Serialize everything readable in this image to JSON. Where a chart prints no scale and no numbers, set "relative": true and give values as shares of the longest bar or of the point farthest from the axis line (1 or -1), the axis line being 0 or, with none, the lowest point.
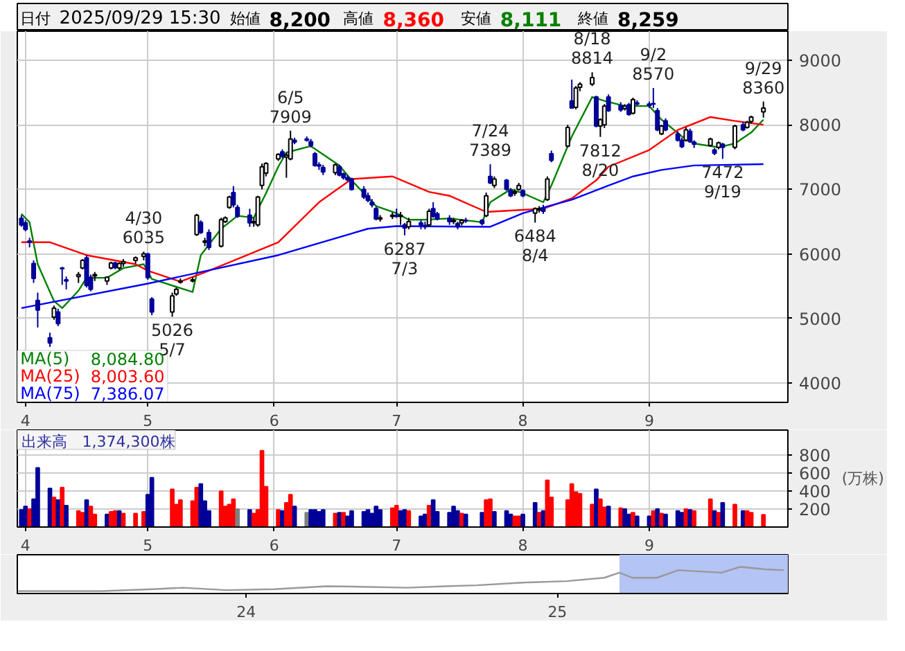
{
  "chart_data": [
    {
      "type": "candlestick",
      "annotations": [
        "日付 2025/09/29 15:30",
        "始値 8,200",
        "高値 8,360",
        "安値 8,111",
        "終値 8,259",
        {
          "text": "4/30\n6035",
          "x": "2025-04-30",
          "y": 6035
        },
        {
          "text": "5026\n5/7",
          "x": "2025-05-07",
          "y": 5026
        },
        {
          "text": "6/5\n7909",
          "x": "2025-06-05",
          "y": 7909
        },
        {
          "text": "6287\n7/3",
          "x": "2025-07-03",
          "y": 6287
        },
        {
          "text": "7/24\n7389",
          "x": "2025-07-24",
          "y": 7389
        },
        {
          "text": "6484\n8/4",
          "x": "2025-08-04",
          "y": 6484
        },
        {
          "text": "8/18\n8814",
          "x": "2025-08-18",
          "y": 8814
        },
        {
          "text": "7812\n8/20",
          "x": "2025-08-20",
          "y": 7812
        },
        {
          "text": "9/2\n8570",
          "x": "2025-09-02",
          "y": 8570
        },
        {
          "text": "7472\n9/19",
          "x": "2025-09-19",
          "y": 7472
        },
        {
          "text": "9/29\n8360",
          "x": "2025-09-29",
          "y": 8360
        }
      ],
      "x": [
        "2025-03-31",
        "2025-04-01",
        "2025-04-02",
        "2025-04-03",
        "2025-04-04",
        "2025-04-07",
        "2025-04-08",
        "2025-04-09",
        "2025-04-10",
        "2025-04-11",
        "2025-04-14",
        "2025-04-15",
        "2025-04-16",
        "2025-04-17",
        "2025-04-18",
        "2025-04-21",
        "2025-04-22",
        "2025-04-23",
        "2025-04-24",
        "2025-04-25",
        "2025-04-28",
        "2025-04-30",
        "2025-05-01",
        "2025-05-02",
        "2025-05-07",
        "2025-05-08",
        "2025-05-09",
        "2025-05-12",
        "2025-05-13",
        "2025-05-14",
        "2025-05-15",
        "2025-05-16",
        "2025-05-19",
        "2025-05-20",
        "2025-05-21",
        "2025-05-22",
        "2025-05-23",
        "2025-05-26",
        "2025-05-27",
        "2025-05-28",
        "2025-05-29",
        "2025-05-30",
        "2025-06-02",
        "2025-06-03",
        "2025-06-04",
        "2025-06-05",
        "2025-06-06",
        "2025-06-09",
        "2025-06-10",
        "2025-06-11",
        "2025-06-12",
        "2025-06-13",
        "2025-06-16",
        "2025-06-17",
        "2025-06-18",
        "2025-06-19",
        "2025-06-20",
        "2025-06-23",
        "2025-06-24",
        "2025-06-25",
        "2025-06-26",
        "2025-06-27",
        "2025-06-30",
        "2025-07-01",
        "2025-07-02",
        "2025-07-03",
        "2025-07-04",
        "2025-07-07",
        "2025-07-08",
        "2025-07-09",
        "2025-07-10",
        "2025-07-11",
        "2025-07-14",
        "2025-07-15",
        "2025-07-16",
        "2025-07-17",
        "2025-07-18",
        "2025-07-22",
        "2025-07-23",
        "2025-07-24",
        "2025-07-25",
        "2025-07-28",
        "2025-07-29",
        "2025-07-30",
        "2025-07-31",
        "2025-08-01",
        "2025-08-04",
        "2025-08-05",
        "2025-08-06",
        "2025-08-07",
        "2025-08-08",
        "2025-08-12",
        "2025-08-13",
        "2025-08-14",
        "2025-08-15",
        "2025-08-18",
        "2025-08-19",
        "2025-08-20",
        "2025-08-21",
        "2025-08-22",
        "2025-08-25",
        "2025-08-26",
        "2025-08-27",
        "2025-08-28",
        "2025-08-29",
        "2025-09-01",
        "2025-09-02",
        "2025-09-03",
        "2025-09-04",
        "2025-09-05",
        "2025-09-08",
        "2025-09-09",
        "2025-09-10",
        "2025-09-11",
        "2025-09-12",
        "2025-09-16",
        "2025-09-17",
        "2025-09-18",
        "2025-09-19",
        "2025-09-22",
        "2025-09-24",
        "2025-09-25",
        "2025-09-26",
        "2025-09-29"
      ],
      "ohlc": [
        [
          6550,
          6600,
          6420,
          6450
        ],
        [
          6480,
          6520,
          6350,
          6380
        ],
        [
          6200,
          6250,
          6100,
          6180
        ],
        [
          5850,
          5900,
          5550,
          5620
        ],
        [
          5280,
          5400,
          4860,
          5130
        ],
        [
          4700,
          4780,
          4560,
          4620
        ],
        [
          5020,
          5200,
          4980,
          5160
        ],
        [
          5100,
          5150,
          4880,
          4920
        ],
        [
          5780,
          5800,
          5520,
          5770
        ],
        [
          5600,
          5650,
          5450,
          5580
        ],
        [
          5650,
          5720,
          5550,
          5680
        ],
        [
          5780,
          5920,
          5760,
          5900
        ],
        [
          5940,
          5980,
          5480,
          5510
        ],
        [
          5640,
          5680,
          5420,
          5450
        ],
        [
          5660,
          5720,
          5580,
          5680
        ],
        [
          5580,
          5650,
          5520,
          5640
        ],
        [
          5780,
          5880,
          5760,
          5860
        ],
        [
          5860,
          5880,
          5760,
          5790
        ],
        [
          5780,
          5870,
          5750,
          5850
        ],
        [
          5850,
          5920,
          5800,
          5880
        ],
        [
          5900,
          5960,
          5850,
          5940
        ],
        [
          5960,
          6035,
          5900,
          6000
        ],
        [
          6000,
          6010,
          5600,
          5630
        ],
        [
          5300,
          5330,
          5050,
          5100
        ],
        [
          5100,
          5400,
          5026,
          5350
        ],
        [
          5380,
          5480,
          5350,
          5450
        ],
        [
          5560,
          5620,
          5540,
          5580
        ],
        [
          5580,
          5640,
          5560,
          5600
        ],
        [
          6300,
          6620,
          6280,
          6600
        ],
        [
          6490,
          6520,
          6310,
          6330
        ],
        [
          6180,
          6250,
          6120,
          6200
        ],
        [
          6330,
          6380,
          6060,
          6100
        ],
        [
          6120,
          6560,
          6100,
          6530
        ],
        [
          6500,
          6580,
          6480,
          6560
        ],
        [
          6720,
          6900,
          6700,
          6880
        ],
        [
          6950,
          7050,
          6720,
          6760
        ],
        [
          6720,
          6760,
          6560,
          6580
        ],
        [
          6600,
          6700,
          6420,
          6480
        ],
        [
          6480,
          6560,
          6420,
          6500
        ],
        [
          6450,
          6900,
          6420,
          6880
        ],
        [
          7060,
          7400,
          7000,
          7350
        ],
        [
          7250,
          7420,
          7200,
          7400
        ],
        [
          7470,
          7560,
          7440,
          7540
        ],
        [
          7580,
          7620,
          7480,
          7510
        ],
        [
          7500,
          7570,
          7180,
          7530
        ],
        [
          7470,
          7909,
          7450,
          7780
        ],
        [
          7760,
          7800,
          7700,
          7730
        ],
        [
          7780,
          7820,
          7740,
          7760
        ],
        [
          7740,
          7780,
          7650,
          7680
        ],
        [
          7550,
          7580,
          7350,
          7370
        ],
        [
          7380,
          7420,
          7300,
          7360
        ],
        [
          7340,
          7380,
          7220,
          7270
        ],
        [
          7260,
          7400,
          7220,
          7380
        ],
        [
          7350,
          7380,
          7200,
          7220
        ],
        [
          7240,
          7260,
          7150,
          7180
        ],
        [
          7180,
          7220,
          7120,
          7150
        ],
        [
          7160,
          7180,
          6980,
          7000
        ],
        [
          7000,
          7050,
          6850,
          6880
        ],
        [
          6900,
          6950,
          6800,
          6830
        ],
        [
          6800,
          6850,
          6720,
          6760
        ],
        [
          6700,
          6730,
          6520,
          6540
        ],
        [
          6540,
          6600,
          6500,
          6560
        ],
        [
          6580,
          6640,
          6540,
          6600
        ],
        [
          6600,
          6700,
          6560,
          6580
        ],
        [
          6580,
          6650,
          6450,
          6600
        ],
        [
          6450,
          6480,
          6287,
          6400
        ],
        [
          6420,
          6560,
          6380,
          6500
        ],
        [
          6480,
          6520,
          6380,
          6450
        ],
        [
          6440,
          6500,
          6380,
          6420
        ],
        [
          6450,
          6700,
          6420,
          6660
        ],
        [
          6700,
          6800,
          6560,
          6580
        ],
        [
          6620,
          6650,
          6520,
          6540
        ],
        [
          6550,
          6600,
          6450,
          6500
        ],
        [
          6500,
          6560,
          6460,
          6520
        ],
        [
          6470,
          6500,
          6380,
          6420
        ],
        [
          6480,
          6540,
          6440,
          6520
        ],
        [
          6520,
          6560,
          6480,
          6510
        ],
        [
          6520,
          6540,
          6440,
          6470
        ],
        [
          6590,
          6950,
          6570,
          6900
        ],
        [
          7200,
          7389,
          7080,
          7100
        ],
        [
          7060,
          7200,
          7020,
          7160
        ],
        [
          7140,
          7160,
          6980,
          7000
        ],
        [
          6980,
          7020,
          6880,
          6900
        ],
        [
          6940,
          7000,
          6900,
          6960
        ],
        [
          7000,
          7100,
          6980,
          7060
        ],
        [
          6980,
          7000,
          6880,
          6900
        ],
        [
          6630,
          6720,
          6484,
          6700
        ],
        [
          6680,
          6740,
          6640,
          6700
        ],
        [
          6700,
          6760,
          6620,
          6660
        ],
        [
          6840,
          7200,
          6820,
          7160
        ],
        [
          7550,
          7600,
          7420,
          7450
        ],
        [
          7670,
          8000,
          7650,
          7960
        ],
        [
          8370,
          8700,
          8250,
          8260
        ],
        [
          8270,
          8600,
          8240,
          8570
        ],
        [
          8580,
          8660,
          8520,
          8630
        ],
        [
          8630,
          8814,
          8600,
          8730
        ],
        [
          8430,
          8450,
          7960,
          7980
        ],
        [
          7980,
          8100,
          7812,
          8080
        ],
        [
          8000,
          8320,
          7950,
          8290
        ],
        [
          8430,
          8470,
          8200,
          8220
        ],
        [
          8300,
          8350,
          8200,
          8230
        ],
        [
          8250,
          8320,
          8220,
          8290
        ],
        [
          8310,
          8340,
          8140,
          8160
        ],
        [
          8180,
          8420,
          8160,
          8390
        ],
        [
          8340,
          8380,
          8300,
          8320
        ],
        [
          8320,
          8360,
          8260,
          8300
        ],
        [
          8330,
          8570,
          8260,
          8320
        ],
        [
          8220,
          8260,
          7900,
          7920
        ],
        [
          7860,
          8000,
          7840,
          7980
        ],
        [
          8060,
          8100,
          7900,
          7920
        ],
        [
          7860,
          7900,
          7740,
          7760
        ],
        [
          7760,
          7800,
          7640,
          7660
        ],
        [
          7760,
          7960,
          7740,
          7920
        ],
        [
          7900,
          7940,
          7720,
          7740
        ],
        [
          7730,
          7760,
          7640,
          7700
        ],
        [
          7680,
          7800,
          7660,
          7780
        ],
        [
          7610,
          7640,
          7530,
          7560
        ],
        [
          7650,
          7740,
          7620,
          7720
        ],
        [
          7700,
          7720,
          7472,
          7650
        ],
        [
          7650,
          8000,
          7620,
          7980
        ],
        [
          8000,
          8040,
          7900,
          7920
        ],
        [
          7960,
          8060,
          7940,
          8040
        ],
        [
          8050,
          8140,
          8020,
          8120
        ],
        [
          8200,
          8360,
          8111,
          8259
        ]
      ],
      "series": [
        {
          "type": "line",
          "name": "MA(5) 8,084.80",
          "color": "#008000",
          "x": [
            "2025-03-31",
            "2025-04-02",
            "2025-04-04",
            "2025-04-08",
            "2025-04-10",
            "2025-04-14",
            "2025-04-16",
            "2025-04-21",
            "2025-04-25",
            "2025-04-30",
            "2025-05-02",
            "2025-05-12",
            "2025-05-14",
            "2025-05-19",
            "2025-05-23",
            "2025-05-27",
            "2025-05-30",
            "2025-06-02",
            "2025-06-04",
            "2025-06-10",
            "2025-06-17",
            "2025-06-20",
            "2025-06-26",
            "2025-07-01",
            "2025-07-04",
            "2025-07-08",
            "2025-07-14",
            "2025-07-22",
            "2025-07-24",
            "2025-07-29",
            "2025-08-01",
            "2025-08-06",
            "2025-08-08",
            "2025-08-13",
            "2025-08-18",
            "2025-08-21",
            "2025-08-26",
            "2025-09-01",
            "2025-09-04",
            "2025-09-09",
            "2025-09-12",
            "2025-09-18",
            "2025-09-22",
            "2025-09-26",
            "2025-09-29"
          ],
          "values": [
            6620,
            6490,
            5840,
            5270,
            5160,
            5430,
            5630,
            5630,
            5780,
            5840,
            5610,
            5410,
            5980,
            6390,
            6590,
            6560,
            6940,
            7350,
            7570,
            7670,
            7370,
            7140,
            6740,
            6630,
            6530,
            6530,
            6550,
            6490,
            6800,
            7000,
            6940,
            6800,
            7060,
            7820,
            8430,
            8370,
            8290,
            8290,
            8080,
            7820,
            7710,
            7650,
            7710,
            7880,
            8080
          ]
        },
        {
          "type": "line",
          "name": "MA(25) 8,003.60",
          "color": "#ff0000",
          "x": [
            "2025-03-31",
            "2025-04-07",
            "2025-04-16",
            "2025-04-28",
            "2025-05-01",
            "2025-05-09",
            "2025-05-16",
            "2025-06-02",
            "2025-06-12",
            "2025-06-20",
            "2025-06-30",
            "2025-07-09",
            "2025-07-14",
            "2025-07-23",
            "2025-08-06",
            "2025-08-13",
            "2025-08-19",
            "2025-08-22",
            "2025-09-01",
            "2025-09-08",
            "2025-09-16",
            "2025-09-22",
            "2025-09-29"
          ],
          "values": [
            6180,
            6180,
            5980,
            5840,
            5740,
            5570,
            5740,
            6180,
            6800,
            7160,
            7200,
            6960,
            6900,
            6650,
            6700,
            6860,
            7140,
            7350,
            7610,
            7920,
            8120,
            8060,
            8000
          ]
        },
        {
          "type": "line",
          "name": "MA(75) 7,386.07",
          "color": "#0000ff",
          "x": [
            "2025-03-31",
            "2025-05-01",
            "2025-06-02",
            "2025-06-24",
            "2025-07-01",
            "2025-07-24",
            "2025-08-01",
            "2025-08-13",
            "2025-08-22",
            "2025-08-28",
            "2025-09-04",
            "2025-09-12",
            "2025-09-29"
          ],
          "values": [
            5160,
            5540,
            5980,
            6390,
            6430,
            6420,
            6630,
            6840,
            7060,
            7200,
            7300,
            7370,
            7390
          ]
        }
      ],
      "xlim": [
        "2025-03-30",
        "2025-10-05"
      ],
      "xticks": [
        {
          "value": "2025-04-01",
          "label": "4"
        },
        {
          "value": "2025-05-01",
          "label": "5"
        },
        {
          "value": "2025-06-01",
          "label": "6"
        },
        {
          "value": "2025-07-01",
          "label": "7"
        },
        {
          "value": "2025-08-01",
          "label": "8"
        },
        {
          "value": "2025-09-01",
          "label": "9"
        }
      ],
      "ylim": [
        3700,
        9450
      ],
      "yticks": [
        4000,
        5000,
        6000,
        7000,
        8000,
        9000
      ],
      "grid": true,
      "legend": "bottom left"
    },
    {
      "type": "bar",
      "title": "出来高　1,374,300株",
      "ylabel": "(万株)",
      "x": [
        "2025-03-31",
        "2025-04-01",
        "2025-04-02",
        "2025-04-03",
        "2025-04-04",
        "2025-04-07",
        "2025-04-08",
        "2025-04-09",
        "2025-04-10",
        "2025-04-11",
        "2025-04-14",
        "2025-04-15",
        "2025-04-16",
        "2025-04-17",
        "2025-04-18",
        "2025-04-21",
        "2025-04-22",
        "2025-04-23",
        "2025-04-24",
        "2025-04-25",
        "2025-04-28",
        "2025-04-30",
        "2025-05-01",
        "2025-05-02",
        "2025-05-07",
        "2025-05-08",
        "2025-05-09",
        "2025-05-12",
        "2025-05-13",
        "2025-05-14",
        "2025-05-15",
        "2025-05-16",
        "2025-05-19",
        "2025-05-20",
        "2025-05-21",
        "2025-05-22",
        "2025-05-23",
        "2025-05-26",
        "2025-05-27",
        "2025-05-28",
        "2025-05-29",
        "2025-05-30",
        "2025-06-02",
        "2025-06-03",
        "2025-06-04",
        "2025-06-05",
        "2025-06-06",
        "2025-06-09",
        "2025-06-10",
        "2025-06-11",
        "2025-06-12",
        "2025-06-13",
        "2025-06-16",
        "2025-06-17",
        "2025-06-18",
        "2025-06-19",
        "2025-06-20",
        "2025-06-23",
        "2025-06-24",
        "2025-06-25",
        "2025-06-26",
        "2025-06-27",
        "2025-06-30",
        "2025-07-01",
        "2025-07-02",
        "2025-07-03",
        "2025-07-04",
        "2025-07-07",
        "2025-07-08",
        "2025-07-09",
        "2025-07-10",
        "2025-07-11",
        "2025-07-14",
        "2025-07-15",
        "2025-07-16",
        "2025-07-17",
        "2025-07-18",
        "2025-07-22",
        "2025-07-23",
        "2025-07-24",
        "2025-07-25",
        "2025-07-28",
        "2025-07-29",
        "2025-07-30",
        "2025-07-31",
        "2025-08-01",
        "2025-08-04",
        "2025-08-05",
        "2025-08-06",
        "2025-08-07",
        "2025-08-08",
        "2025-08-12",
        "2025-08-13",
        "2025-08-14",
        "2025-08-15",
        "2025-08-18",
        "2025-08-19",
        "2025-08-20",
        "2025-08-21",
        "2025-08-22",
        "2025-08-25",
        "2025-08-26",
        "2025-08-27",
        "2025-08-28",
        "2025-08-29",
        "2025-09-01",
        "2025-09-02",
        "2025-09-03",
        "2025-09-04",
        "2025-09-05",
        "2025-09-08",
        "2025-09-09",
        "2025-09-10",
        "2025-09-11",
        "2025-09-12",
        "2025-09-16",
        "2025-09-17",
        "2025-09-18",
        "2025-09-19",
        "2025-09-22",
        "2025-09-24",
        "2025-09-25",
        "2025-09-26",
        "2025-09-29"
      ],
      "values": [
        190,
        230,
        200,
        310,
        660,
        430,
        330,
        300,
        440,
        240,
        180,
        160,
        300,
        230,
        140,
        140,
        170,
        180,
        180,
        150,
        150,
        170,
        360,
        550,
        420,
        250,
        300,
        290,
        440,
        480,
        290,
        180,
        400,
        230,
        250,
        310,
        200,
        190,
        150,
        190,
        850,
        450,
        190,
        180,
        270,
        360,
        230,
        160,
        190,
        190,
        170,
        190,
        150,
        160,
        160,
        120,
        180,
        170,
        190,
        150,
        230,
        190,
        210,
        240,
        180,
        190,
        180,
        120,
        140,
        240,
        300,
        170,
        160,
        230,
        180,
        150,
        140,
        160,
        300,
        310,
        170,
        180,
        140,
        120,
        120,
        140,
        270,
        160,
        180,
        520,
        330,
        300,
        480,
        390,
        370,
        250,
        420,
        310,
        220,
        230,
        210,
        200,
        140,
        160,
        120,
        120,
        180,
        200,
        150,
        140,
        180,
        160,
        200,
        190,
        180,
        310,
        180,
        160,
        270,
        250,
        180,
        180,
        160,
        137
      ],
      "colors": [
        "#000099",
        "#000099",
        "#ff0000",
        "#000099",
        "#000099",
        "#000099",
        "#ff0000",
        "#000099",
        "#ff0000",
        "#000099",
        "#ff0000",
        "#ff0000",
        "#000099",
        "#ff0000",
        "#ff0000",
        "#000099",
        "#ff0000",
        "#ff0000",
        "#000099",
        "#ff0000",
        "#ff0000",
        "#ff0000",
        "#000099",
        "#000099",
        "#ff0000",
        "#ff0000",
        "#ff0000",
        "#ff0000",
        "#ff0000",
        "#000099",
        "#000099",
        "#000099",
        "#ff0000",
        "#ff0000",
        "#ff0000",
        "#ff0000",
        "#808080",
        "#000099",
        "#ff0000",
        "#ff0000",
        "#ff0000",
        "#ff0000",
        "#ff0000",
        "#000099",
        "#ff0000",
        "#ff0000",
        "#000099",
        "#808080",
        "#000099",
        "#000099",
        "#000099",
        "#000099",
        "#ff0000",
        "#000099",
        "#ff0000",
        "#000099",
        "#000099",
        "#000099",
        "#000099",
        "#000099",
        "#000099",
        "#000099",
        "#ff0000",
        "#ff0000",
        "#000099",
        "#000099",
        "#ff0000",
        "#000099",
        "#000099",
        "#ff0000",
        "#000099",
        "#000099",
        "#000099",
        "#000099",
        "#000099",
        "#ff0000",
        "#000099",
        "#000099",
        "#ff0000",
        "#ff0000",
        "#000099",
        "#000099",
        "#000099",
        "#ff0000",
        "#ff0000",
        "#000099",
        "#000099",
        "#ff0000",
        "#000099",
        "#ff0000",
        "#ff0000",
        "#ff0000",
        "#ff0000",
        "#ff0000",
        "#ff0000",
        "#ff0000",
        "#000099",
        "#ff0000",
        "#ff0000",
        "#000099",
        "#ff0000",
        "#000099",
        "#000099",
        "#ff0000",
        "#000099",
        "#000099",
        "#ff0000",
        "#000099",
        "#ff0000",
        "#000099",
        "#000099",
        "#000099",
        "#ff0000",
        "#000099",
        "#ff0000",
        "#ff0000",
        "#000099",
        "#ff0000",
        "#000099",
        "#ff0000",
        "#000099",
        "#ff0000",
        "#ff0000",
        "#ff0000"
      ],
      "xlim": [
        "2025-03-30",
        "2025-10-05"
      ],
      "xticks": [
        {
          "value": "2025-04-01",
          "label": "4"
        },
        {
          "value": "2025-05-01",
          "label": "5"
        },
        {
          "value": "2025-06-01",
          "label": "6"
        },
        {
          "value": "2025-07-01",
          "label": "7"
        },
        {
          "value": "2025-08-01",
          "label": "8"
        },
        {
          "value": "2025-09-01",
          "label": "9"
        }
      ],
      "ylim": [
        0,
        1080
      ],
      "yticks": [
        200,
        400,
        600,
        800
      ],
      "grid": true
    },
    {
      "type": "line",
      "relative": true,
      "x": [
        "2023-04-08",
        "2023-07-16",
        "2023-09-13",
        "2023-10-19",
        "2023-12-09",
        "2024-02-03",
        "2024-04-05",
        "2024-05-15",
        "2024-07-09",
        "2024-08-22",
        "2024-09-28",
        "2024-11-21",
        "2025-01-12",
        "2025-02-25",
        "2025-03-15",
        "2025-03-30",
        "2025-04-28",
        "2025-05-23",
        "2025-07-13",
        "2025-08-04",
        "2025-09-02",
        "2025-09-24"
      ],
      "values": [
        0,
        0,
        0.08,
        0.14,
        0.04,
        0.08,
        0.2,
        0.18,
        0.14,
        0.2,
        0.24,
        0.35,
        0.41,
        0.55,
        0.76,
        0.55,
        0.55,
        0.86,
        0.76,
        1.0,
        0.9,
        0.86
      ],
      "color": "#999999",
      "bands": [
        {
          "axis": "x",
          "from": "2025-03-15",
          "to": "2025-09-29",
          "color": "#b4c4f4"
        }
      ],
      "xlim": [
        "2023-04-07",
        "2025-09-29"
      ],
      "xticks": [
        {
          "value": "2024-01-01",
          "label": "24"
        },
        {
          "value": "2025-01-01",
          "label": "25"
        }
      ],
      "tick_labels": "x"
    }
  ]
}
